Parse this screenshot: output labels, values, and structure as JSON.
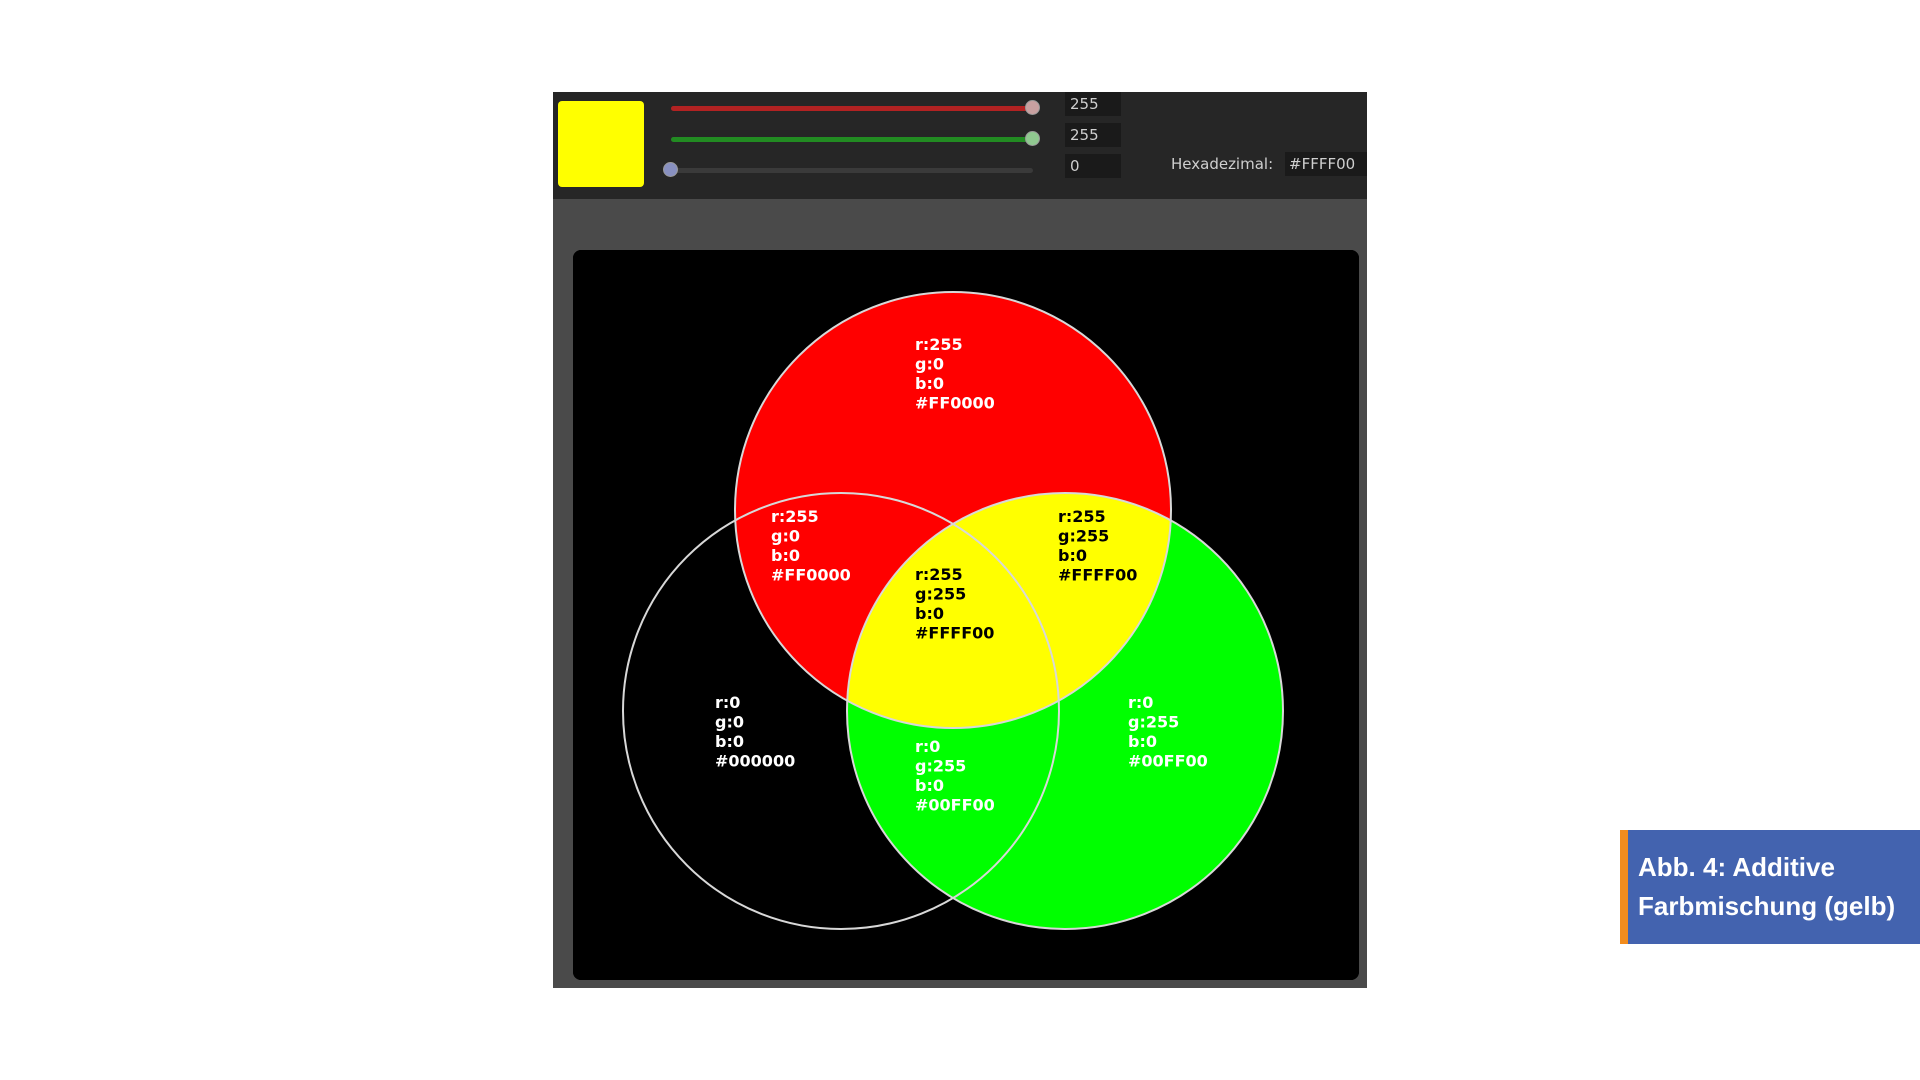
{
  "color_picker": {
    "swatch_color": "#FFFF00",
    "sliders": [
      {
        "channel": "r",
        "value": "255",
        "max": 255,
        "track_color": "#b22222",
        "thumb_color": "#c8a0a0"
      },
      {
        "channel": "g",
        "value": "255",
        "max": 255,
        "track_color": "#228b22",
        "thumb_color": "#90c890"
      },
      {
        "channel": "b",
        "value": "0",
        "max": 255,
        "track_color": "#3355cc",
        "thumb_color": "#8890c0"
      }
    ],
    "hex_label": "Hexadezimal:",
    "hex_value": "#FFFF00"
  },
  "venn": {
    "regions": {
      "red_only": [
        "r:255",
        "g:0",
        "b:0",
        "#FF0000"
      ],
      "left_mix": [
        "r:255",
        "g:0",
        "b:0",
        "#FF0000"
      ],
      "top_right": [
        "r:255",
        "g:255",
        "b:0",
        "#FFFF00"
      ],
      "center": [
        "r:255",
        "g:255",
        "b:0",
        "#FFFF00"
      ],
      "black_only": [
        "r:0",
        "g:0",
        "b:0",
        "#000000"
      ],
      "bottom_mix": [
        "r:0",
        "g:255",
        "b:0",
        "#00FF00"
      ],
      "green_only": [
        "r:0",
        "g:255",
        "b:0",
        "#00FF00"
      ]
    },
    "colors": {
      "red": "#FF0000",
      "green": "#00FF00",
      "yellow": "#FFFF00",
      "black": "#000000",
      "outline": "#d8d8d8"
    }
  },
  "caption": {
    "line1": "Abb. 4: Additive",
    "line2": "Farbmischung (gelb)",
    "accent_color": "#f28c1e",
    "bg_color": "#4363af"
  }
}
